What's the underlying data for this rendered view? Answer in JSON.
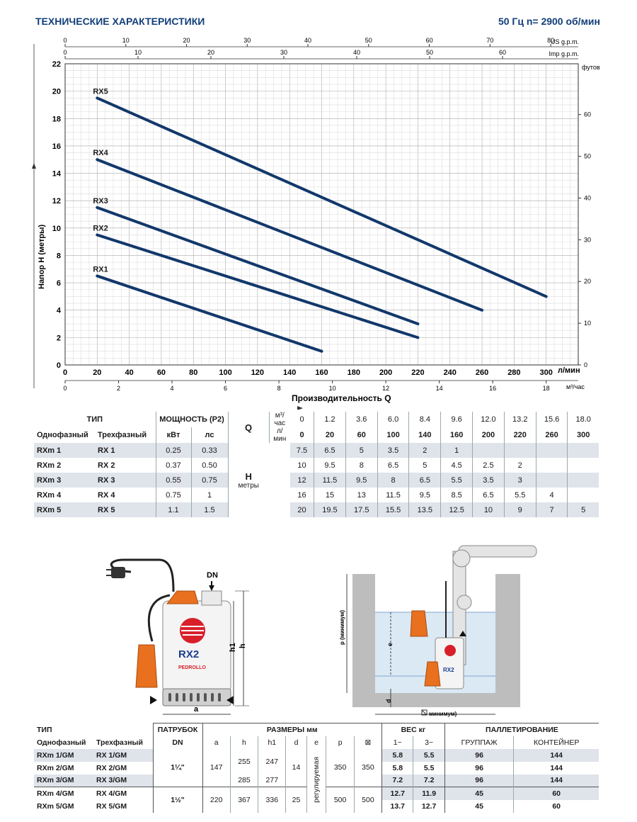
{
  "header": {
    "title": "ТЕХНИЧЕСКИЕ ХАРАКТЕРИСТИКИ",
    "speed": "50 Гц  n= 2900 об/мин"
  },
  "chart_data": {
    "type": "line",
    "ylabel": "Напор  H (метры)",
    "xlabel": "Производительность  Q",
    "x_unit_lpm": "л/мин",
    "x_unit_m3h": "м³/час",
    "y_unit_feet": "футов",
    "top_axis_us": "US g.p.m.",
    "top_axis_imp": "Imp g.p.m.",
    "xlim": [
      0,
      320
    ],
    "ylim": [
      0,
      22
    ],
    "x_ticks_lpm": [
      0,
      20,
      40,
      60,
      80,
      100,
      120,
      140,
      160,
      180,
      200,
      220,
      240,
      260,
      280,
      300
    ],
    "y_ticks_m": [
      0,
      2,
      4,
      6,
      8,
      10,
      12,
      14,
      16,
      18,
      20,
      22
    ],
    "m3h_ticks": [
      0,
      2,
      4,
      6,
      8,
      10,
      12,
      14,
      16,
      18
    ],
    "us_gpm_ticks": [
      0,
      10,
      20,
      30,
      40,
      50,
      60,
      70,
      80
    ],
    "imp_gpm_ticks": [
      0,
      10,
      20,
      30,
      40,
      50,
      60
    ],
    "feet_ticks": [
      0,
      10,
      20,
      30,
      40,
      50,
      60
    ],
    "series": [
      {
        "name": "RX1",
        "x": [
          20,
          160
        ],
        "y": [
          6.5,
          1
        ]
      },
      {
        "name": "RX2",
        "x": [
          20,
          220
        ],
        "y": [
          9.5,
          2
        ]
      },
      {
        "name": "RX3",
        "x": [
          20,
          220
        ],
        "y": [
          11.5,
          3
        ]
      },
      {
        "name": "RX4",
        "x": [
          20,
          260
        ],
        "y": [
          15,
          4
        ]
      },
      {
        "name": "RX5",
        "x": [
          20,
          300
        ],
        "y": [
          19.5,
          5
        ]
      }
    ]
  },
  "perf_table": {
    "type_label": "ТИП",
    "single_label": "Однофазный",
    "three_label": "Трехфазный",
    "power_label": "МОЩНОСТЬ (P2)",
    "kw_label": "кВт",
    "hp_label": "лс",
    "q_label": "Q",
    "m3h_unit": "м³/час",
    "lpm_unit": "л/мин",
    "h_label": "H",
    "h_unit": "метры",
    "q_m3h": [
      "0",
      "1.2",
      "3.6",
      "6.0",
      "8.4",
      "9.6",
      "12.0",
      "13.2",
      "15.6",
      "18.0"
    ],
    "q_lpm": [
      "0",
      "20",
      "60",
      "100",
      "140",
      "160",
      "200",
      "220",
      "260",
      "300"
    ],
    "rows": [
      {
        "single": "RXm 1",
        "three": "RX 1",
        "kw": "0.25",
        "hp": "0.33",
        "h": [
          "7.5",
          "6.5",
          "5",
          "3.5",
          "2",
          "1",
          "",
          "",
          "",
          ""
        ]
      },
      {
        "single": "RXm 2",
        "three": "RX 2",
        "kw": "0.37",
        "hp": "0.50",
        "h": [
          "10",
          "9.5",
          "8",
          "6.5",
          "5",
          "4.5",
          "2.5",
          "2",
          "",
          ""
        ]
      },
      {
        "single": "RXm 3",
        "three": "RX 3",
        "kw": "0.55",
        "hp": "0.75",
        "h": [
          "12",
          "11.5",
          "9.5",
          "8",
          "6.5",
          "5.5",
          "3.5",
          "3",
          "",
          ""
        ]
      },
      {
        "single": "RXm 4",
        "three": "RX 4",
        "kw": "0.75",
        "hp": "1",
        "h": [
          "16",
          "15",
          "13",
          "11.5",
          "9.5",
          "8.5",
          "6.5",
          "5.5",
          "4",
          ""
        ]
      },
      {
        "single": "RXm 5",
        "three": "RX 5",
        "kw": "1.1",
        "hp": "1.5",
        "h": [
          "20",
          "19.5",
          "17.5",
          "15.5",
          "13.5",
          "12.5",
          "10",
          "9",
          "7",
          "5"
        ]
      }
    ]
  },
  "drawing": {
    "dn": "DN",
    "h1": "h1",
    "h": "h",
    "a": "a",
    "pump_label": "RX2",
    "brand": "PEDROLLO",
    "p_label": "p (минимум)",
    "e": "e",
    "d": "d",
    "min_label": "минимум)"
  },
  "dims_table": {
    "type_label": "ТИП",
    "single_label": "Однофазный",
    "three_label": "Трехфазный",
    "port_label": "ПАТРУБОК",
    "dn_label": "DN",
    "dims_label": "РАЗМЕРЫ  мм",
    "cols": [
      "a",
      "h",
      "h1",
      "d",
      "e",
      "p",
      "⊠"
    ],
    "weight_label": "ВЕС  кг",
    "w1": "1~",
    "w3": "3~",
    "pallet_label": "ПАЛЛЕТИРОВАНИЕ",
    "group_label": "ГРУППАЖ",
    "container_label": "КОНТЕЙНЕР",
    "adjustable": "регулируемая",
    "rows": [
      {
        "single": "RXm 1/GM",
        "three": "RX 1/GM",
        "w1": "5.8",
        "w3": "5.5",
        "grp": "96",
        "cont": "144"
      },
      {
        "single": "RXm 2/GM",
        "three": "RX 2/GM",
        "w1": "5.8",
        "w3": "5.5",
        "grp": "96",
        "cont": "144"
      },
      {
        "single": "RXm 3/GM",
        "three": "RX 3/GM",
        "w1": "7.2",
        "w3": "7.2",
        "grp": "96",
        "cont": "144"
      },
      {
        "single": "RXm 4/GM",
        "three": "RX 4/GM",
        "w1": "12.7",
        "w3": "11.9",
        "grp": "45",
        "cont": "60"
      },
      {
        "single": "RXm 5/GM",
        "three": "RX 5/GM",
        "w1": "13.7",
        "w3": "12.7",
        "grp": "45",
        "cont": "60"
      }
    ],
    "group1": {
      "dn": "1¼\"",
      "a": "147",
      "h_a": "255",
      "h1_a": "247",
      "h_b": "285",
      "h1_b": "277",
      "d": "14",
      "p": "350",
      "x": "350"
    },
    "group2": {
      "dn": "1½\"",
      "a": "220",
      "h": "367",
      "h1": "336",
      "d": "25",
      "p": "500",
      "x": "500"
    }
  },
  "colors": {
    "curve": "#12386b",
    "title": "#123f7a",
    "shade": "#dfe3ea",
    "grid": "#c4c4c4",
    "orange": "#e8701e"
  }
}
